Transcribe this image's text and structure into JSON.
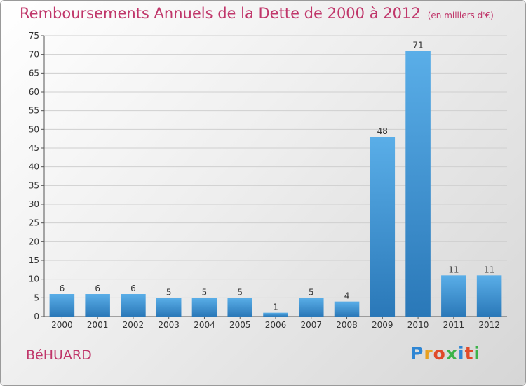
{
  "chart_data": {
    "type": "bar",
    "title": "Remboursements Annuels de la Dette de 2000 à 2012",
    "unit": "(en milliers d'€)",
    "categories": [
      "2000",
      "2001",
      "2002",
      "2003",
      "2004",
      "2005",
      "2006",
      "2007",
      "2008",
      "2009",
      "2010",
      "2011",
      "2012"
    ],
    "values": [
      6,
      6,
      6,
      5,
      5,
      5,
      1,
      5,
      4,
      48,
      71,
      11,
      11
    ],
    "ylim": [
      0,
      75
    ],
    "yticks": [
      0,
      5,
      10,
      15,
      20,
      25,
      30,
      35,
      40,
      45,
      50,
      55,
      60,
      65,
      70,
      75
    ],
    "grid": true,
    "bar_color_top": "#5aaee8",
    "bar_color_bottom": "#2a78b8",
    "grid_color": "#cfcfcf"
  },
  "footer": {
    "commune": "BéHUARD",
    "logo_letters": [
      "P",
      "r",
      "o",
      "x",
      "i",
      "t",
      "i"
    ],
    "logo_colors": [
      "#2e86d4",
      "#e8a020",
      "#e04a2a",
      "#3bb34a",
      "#2e86d4",
      "#e04a2a",
      "#3bb34a"
    ]
  }
}
